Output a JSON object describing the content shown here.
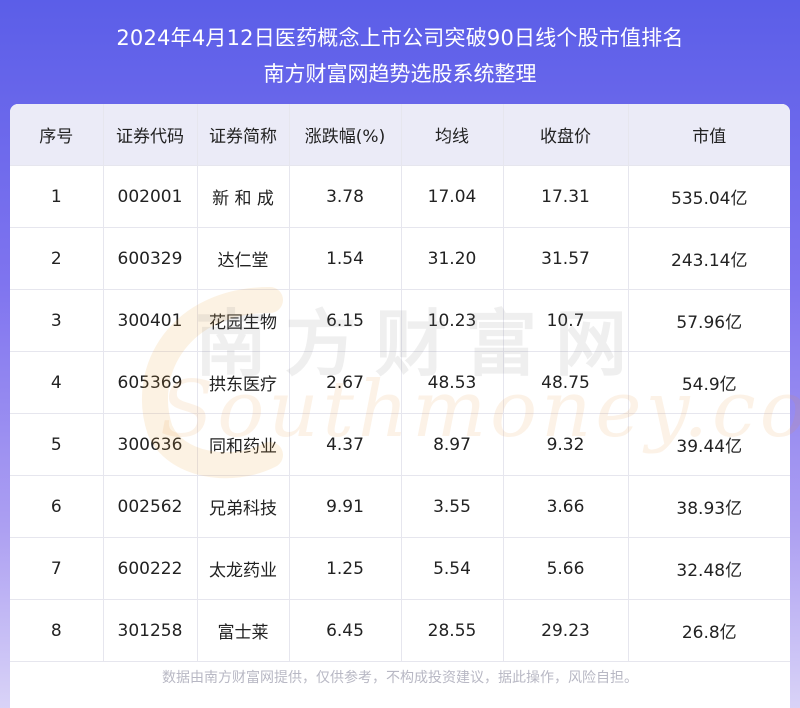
{
  "header": {
    "title_line1": "2024年4月12日医药概念上市公司突破90日线个股市值排名",
    "title_line2": "南方财富网趋势选股系统整理"
  },
  "table": {
    "columns": [
      "序号",
      "证券代码",
      "证券简称",
      "涨跌幅(%)",
      "均线",
      "收盘价",
      "市值"
    ],
    "rows": [
      [
        "1",
        "002001",
        "新 和 成",
        "3.78",
        "17.04",
        "17.31",
        "535.04亿"
      ],
      [
        "2",
        "600329",
        "达仁堂",
        "1.54",
        "31.20",
        "31.57",
        "243.14亿"
      ],
      [
        "3",
        "300401",
        "花园生物",
        "6.15",
        "10.23",
        "10.7",
        "57.96亿"
      ],
      [
        "4",
        "605369",
        "拱东医疗",
        "2.67",
        "48.53",
        "48.75",
        "54.9亿"
      ],
      [
        "5",
        "300636",
        "同和药业",
        "4.37",
        "8.97",
        "9.32",
        "39.44亿"
      ],
      [
        "6",
        "002562",
        "兄弟科技",
        "9.91",
        "3.55",
        "3.66",
        "38.93亿"
      ],
      [
        "7",
        "600222",
        "太龙药业",
        "1.25",
        "5.54",
        "5.66",
        "32.48亿"
      ],
      [
        "8",
        "301258",
        "富士莱",
        "6.45",
        "28.55",
        "29.23",
        "26.8亿"
      ]
    ]
  },
  "watermark": {
    "cn": "南方财富网",
    "en": "Southmoney.com"
  },
  "footer": {
    "disclaimer": "数据由南方财富网提供，仅供参考，不构成投资建议，据此操作，风险自担。"
  },
  "colors": {
    "header_gradient_top": "#5b5ee8",
    "header_row_bg": "#ebebf7",
    "text": "#222222"
  }
}
